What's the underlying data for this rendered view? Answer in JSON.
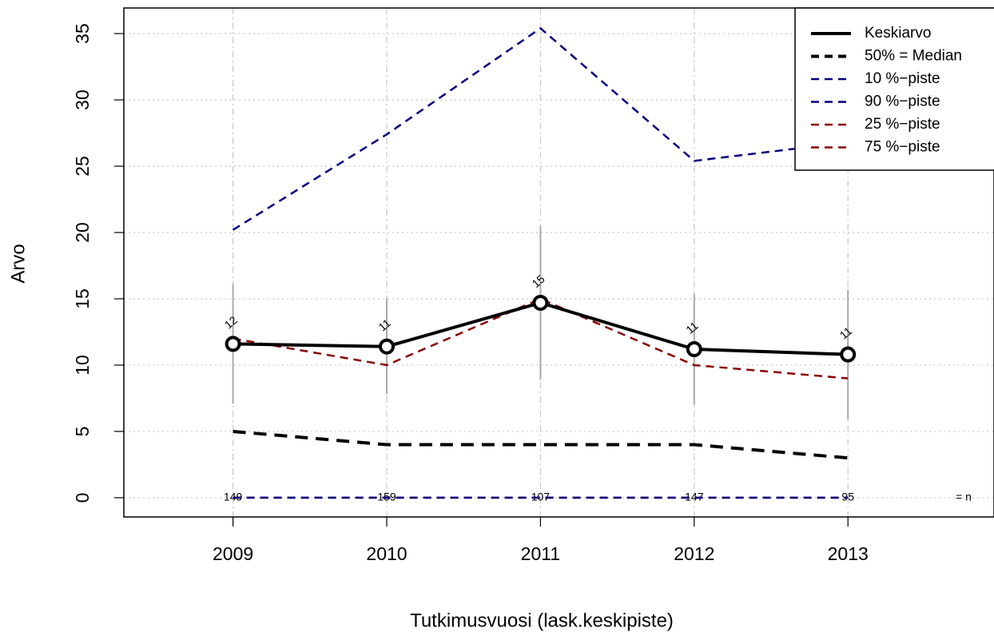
{
  "chart_data": {
    "type": "line",
    "x": [
      2009,
      2010,
      2011,
      2012,
      2013
    ],
    "xlim": [
      2008.29,
      2013.95
    ],
    "xticks": [
      2009,
      2010,
      2011,
      2012,
      2013
    ],
    "ylim": [
      -1.45,
      36.93
    ],
    "yticks": [
      0,
      5,
      10,
      15,
      20,
      25,
      30,
      35
    ],
    "xlabel": "Tutkimusvuosi (lask.keskipiste)",
    "ylabel": "Arvo",
    "grid": true,
    "legend": "top-right",
    "series": [
      {
        "name": "Keskiarvo",
        "color": "#000000",
        "linestyle": "solid",
        "linewidth": 4,
        "values": [
          11.6,
          11.4,
          14.7,
          11.2,
          10.8
        ],
        "value_labels": [
          "12",
          "11",
          "15",
          "11",
          "11"
        ],
        "errors": [
          4.5,
          3.6,
          5.8,
          4.2,
          4.9
        ],
        "error_color": "#aaaaaa",
        "markers": true
      },
      {
        "name": "50% = Median",
        "color": "#000000",
        "linestyle": "dashed",
        "linewidth": 4,
        "values": [
          5,
          4,
          4,
          4,
          3
        ]
      },
      {
        "name": "10 %−piste",
        "color": "#00007f",
        "linestyle": "dashed",
        "linewidth": 2.5,
        "values": [
          0,
          0,
          0,
          0,
          0
        ]
      },
      {
        "name": "90 %−piste",
        "color": "#00007f",
        "linestyle": "dashed",
        "linewidth": 2.5,
        "values": [
          20.2,
          27.4,
          35.4,
          25.4,
          26.8
        ]
      },
      {
        "name": "25 %−piste",
        "color": "#8b0000",
        "linestyle": "dashed",
        "linewidth": 2.5,
        "values": [
          0,
          0,
          0,
          0,
          0
        ]
      },
      {
        "name": "75 %−piste",
        "color": "#8b0000",
        "linestyle": "dashed",
        "linewidth": 2.5,
        "values": [
          12,
          10,
          15,
          10,
          9
        ]
      }
    ],
    "n": [
      149,
      159,
      107,
      147,
      95
    ],
    "n_label": "= n"
  }
}
